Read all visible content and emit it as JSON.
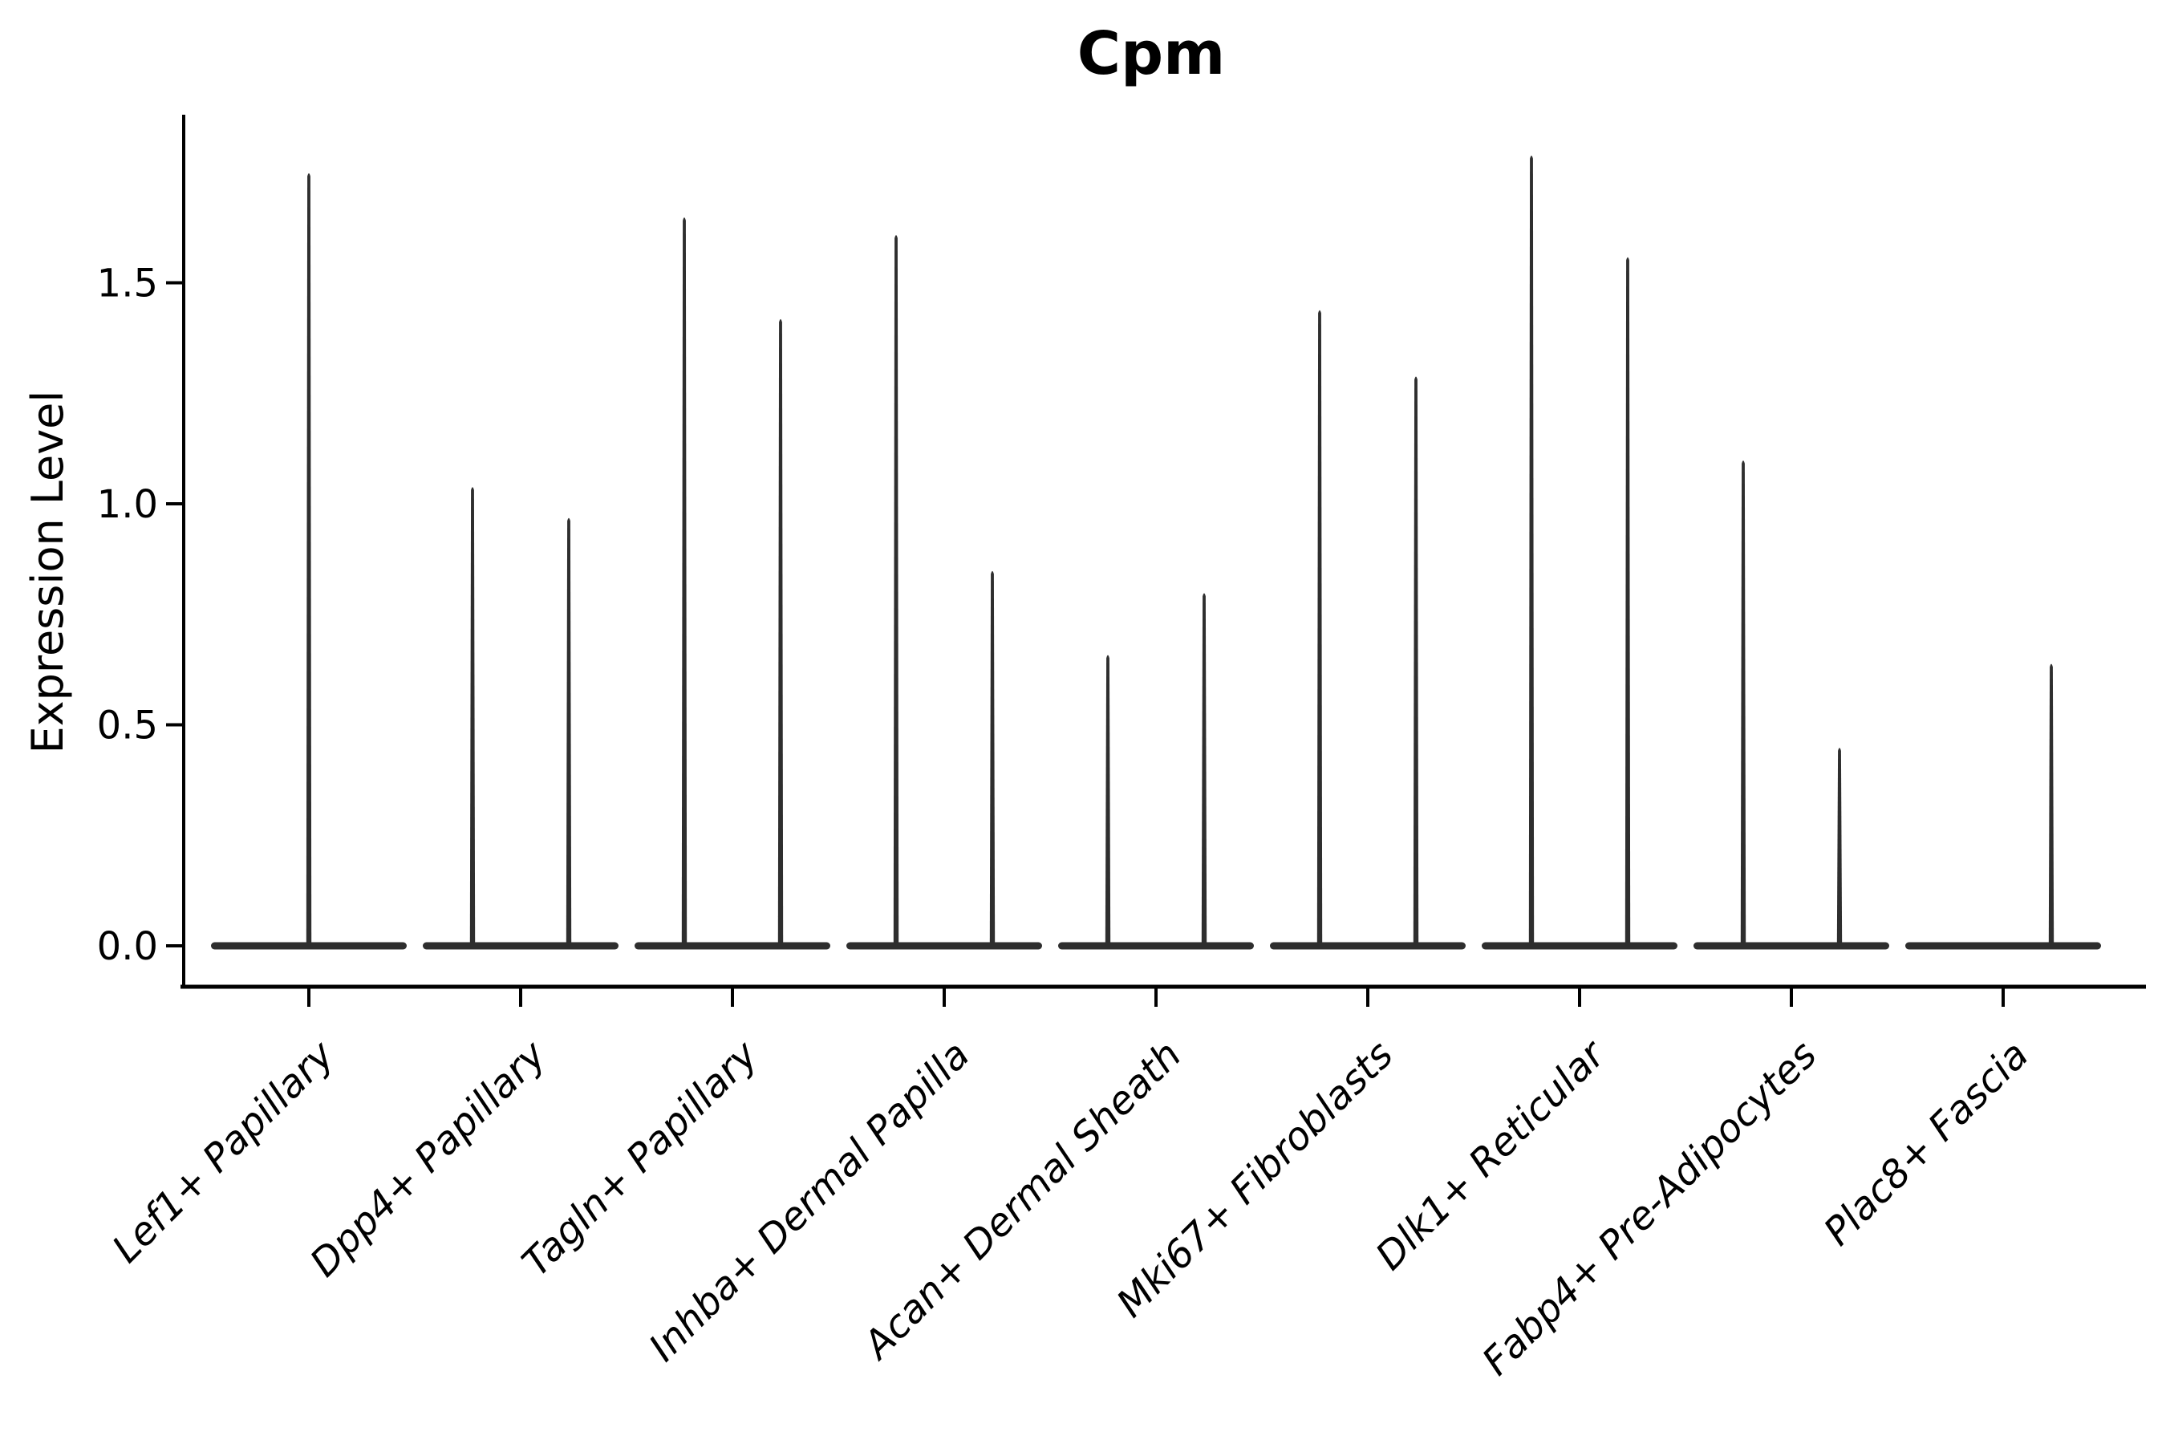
{
  "chart_data": {
    "type": "violin",
    "title": "Cpm",
    "ylabel": "Expression Level",
    "xlabel": "",
    "yticks": [
      "0.0",
      "0.5",
      "1.0",
      "1.5"
    ],
    "ylim": [
      -0.09,
      1.88
    ],
    "grid": false,
    "legend_position": "none",
    "violin_color": "#2e2e2e",
    "axis_color": "#000000",
    "text_color": "#000000",
    "x_label_rotation_deg": 45,
    "x_label_style": "italic",
    "categories": [
      "Lef1+ Papillary",
      "Dpp4+ Papillary",
      "Tagln+ Papillary",
      "Inhba+ Dermal Papilla",
      "Acan+ Dermal Sheath",
      "Mki67+ Fibroblasts",
      "Dlk1+ Reticular",
      "Fabp4+ Pre-Adipocytes",
      "Plac8+ Fascia"
    ],
    "violins": [
      {
        "category": "Lef1+ Papillary",
        "spikes": [
          {
            "slot": "center",
            "max_expression": 1.75
          }
        ]
      },
      {
        "category": "Dpp4+ Papillary",
        "spikes": [
          {
            "slot": "left",
            "max_expression": 1.04
          },
          {
            "slot": "right",
            "max_expression": 0.97
          }
        ]
      },
      {
        "category": "Tagln+ Papillary",
        "spikes": [
          {
            "slot": "left",
            "max_expression": 1.65
          },
          {
            "slot": "right",
            "max_expression": 1.42
          }
        ]
      },
      {
        "category": "Inhba+ Dermal Papilla",
        "spikes": [
          {
            "slot": "left",
            "max_expression": 1.61
          },
          {
            "slot": "right",
            "max_expression": 0.85
          }
        ]
      },
      {
        "category": "Acan+ Dermal Sheath",
        "spikes": [
          {
            "slot": "left",
            "max_expression": 0.66
          },
          {
            "slot": "right",
            "max_expression": 0.8
          }
        ]
      },
      {
        "category": "Mki67+ Fibroblasts",
        "spikes": [
          {
            "slot": "left",
            "max_expression": 1.44
          },
          {
            "slot": "right",
            "max_expression": 1.29
          }
        ]
      },
      {
        "category": "Dlk1+ Reticular",
        "spikes": [
          {
            "slot": "left",
            "max_expression": 1.79
          },
          {
            "slot": "right",
            "max_expression": 1.56
          }
        ]
      },
      {
        "category": "Fabp4+ Pre-Adipocytes",
        "spikes": [
          {
            "slot": "left",
            "max_expression": 1.1
          },
          {
            "slot": "right",
            "max_expression": 0.45
          }
        ]
      },
      {
        "category": "Plac8+ Fascia",
        "spikes": [
          {
            "slot": "left",
            "max_expression": 0.0
          },
          {
            "slot": "right",
            "max_expression": 0.64
          }
        ]
      }
    ]
  }
}
